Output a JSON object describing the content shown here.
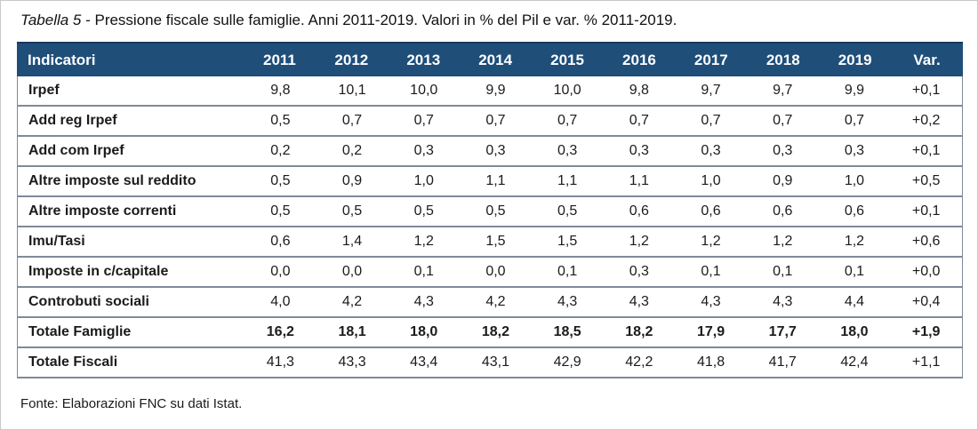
{
  "title": {
    "label_italic": "Tabella 5",
    "text": " - Pressione fiscale sulle famiglie. Anni 2011-2019. Valori in % del Pil e var. % 2011-2019."
  },
  "table": {
    "columns": [
      "Indicatori",
      "2011",
      "2012",
      "2013",
      "2014",
      "2015",
      "2016",
      "2017",
      "2018",
      "2019",
      "Var."
    ],
    "rows": [
      {
        "label": "Irpef",
        "values": [
          "9,8",
          "10,1",
          "10,0",
          "9,9",
          "10,0",
          "9,8",
          "9,7",
          "9,7",
          "9,9",
          "+0,1"
        ],
        "bold_values": false
      },
      {
        "label": "Add reg Irpef",
        "values": [
          "0,5",
          "0,7",
          "0,7",
          "0,7",
          "0,7",
          "0,7",
          "0,7",
          "0,7",
          "0,7",
          "+0,2"
        ],
        "bold_values": false
      },
      {
        "label": "Add com Irpef",
        "values": [
          "0,2",
          "0,2",
          "0,3",
          "0,3",
          "0,3",
          "0,3",
          "0,3",
          "0,3",
          "0,3",
          "+0,1"
        ],
        "bold_values": false
      },
      {
        "label": "Altre imposte sul reddito",
        "values": [
          "0,5",
          "0,9",
          "1,0",
          "1,1",
          "1,1",
          "1,1",
          "1,0",
          "0,9",
          "1,0",
          "+0,5"
        ],
        "bold_values": false
      },
      {
        "label": "Altre imposte correnti",
        "values": [
          "0,5",
          "0,5",
          "0,5",
          "0,5",
          "0,5",
          "0,6",
          "0,6",
          "0,6",
          "0,6",
          "+0,1"
        ],
        "bold_values": false
      },
      {
        "label": "Imu/Tasi",
        "values": [
          "0,6",
          "1,4",
          "1,2",
          "1,5",
          "1,5",
          "1,2",
          "1,2",
          "1,2",
          "1,2",
          "+0,6"
        ],
        "bold_values": false
      },
      {
        "label": "Imposte in c/capitale",
        "values": [
          "0,0",
          "0,0",
          "0,1",
          "0,0",
          "0,1",
          "0,3",
          "0,1",
          "0,1",
          "0,1",
          "+0,0"
        ],
        "bold_values": false
      },
      {
        "label": "Controbuti sociali",
        "values": [
          "4,0",
          "4,2",
          "4,3",
          "4,2",
          "4,3",
          "4,3",
          "4,3",
          "4,3",
          "4,4",
          "+0,4"
        ],
        "bold_values": false
      },
      {
        "label": "Totale Famiglie",
        "values": [
          "16,2",
          "18,1",
          "18,0",
          "18,2",
          "18,5",
          "18,2",
          "17,9",
          "17,7",
          "18,0",
          "+1,9"
        ],
        "bold_values": true
      },
      {
        "label": "Totale Fiscali",
        "values": [
          "41,3",
          "43,3",
          "43,4",
          "43,1",
          "42,9",
          "42,2",
          "41,8",
          "41,7",
          "42,4",
          "+1,1"
        ],
        "bold_values": false
      }
    ]
  },
  "footer": {
    "source": "Fonte: Elaborazioni FNC su dati Istat."
  },
  "colors": {
    "header_bg": "#1F4E79",
    "header_text": "#FFFFFF",
    "row_divider": "#7F8A99",
    "text": "#1B1B1B",
    "page_border": "#C9C9C9"
  }
}
